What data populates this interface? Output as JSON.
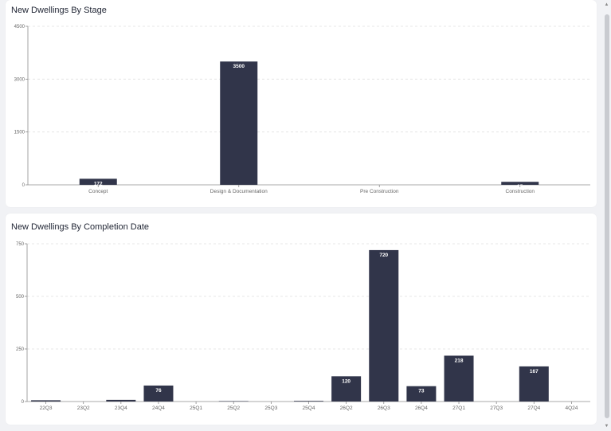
{
  "colors": {
    "bar": "#31354a",
    "axis": "#8c8c8c",
    "grid": "#e0e0e0",
    "tick_text": "#666666",
    "label_text": "#ffffff"
  },
  "chart_data": [
    {
      "type": "bar",
      "title": "New Dwellings By Stage",
      "categories": [
        "Concept",
        "Design & Documentation",
        "Pre Construction",
        "Construction"
      ],
      "values": [
        172,
        3500,
        0,
        85
      ],
      "data_labels": [
        "172",
        "3500",
        "",
        "85"
      ],
      "ylim": [
        0,
        4500
      ],
      "yticks": [
        0,
        1500,
        3000,
        4500
      ],
      "xlabel": "",
      "ylabel": "",
      "grid": true,
      "legend": "none"
    },
    {
      "type": "bar",
      "title": "New Dwellings By Completion Date",
      "categories": [
        "22Q3",
        "23Q2",
        "23Q4",
        "24Q4",
        "25Q1",
        "25Q2",
        "25Q3",
        "25Q4",
        "26Q2",
        "26Q3",
        "26Q4",
        "27Q1",
        "27Q3",
        "27Q4",
        "4Q24"
      ],
      "values": [
        6,
        0,
        8,
        76,
        0,
        2,
        0,
        3,
        120,
        720,
        73,
        218,
        0,
        167,
        0
      ],
      "data_labels": [
        "",
        "",
        "",
        "76",
        "",
        "",
        "",
        "",
        "120",
        "720",
        "73",
        "218",
        "",
        "167",
        ""
      ],
      "ylim": [
        0,
        750
      ],
      "yticks": [
        0,
        250,
        500,
        750
      ],
      "xlabel": "",
      "ylabel": "",
      "grid": true,
      "legend": "none"
    }
  ]
}
